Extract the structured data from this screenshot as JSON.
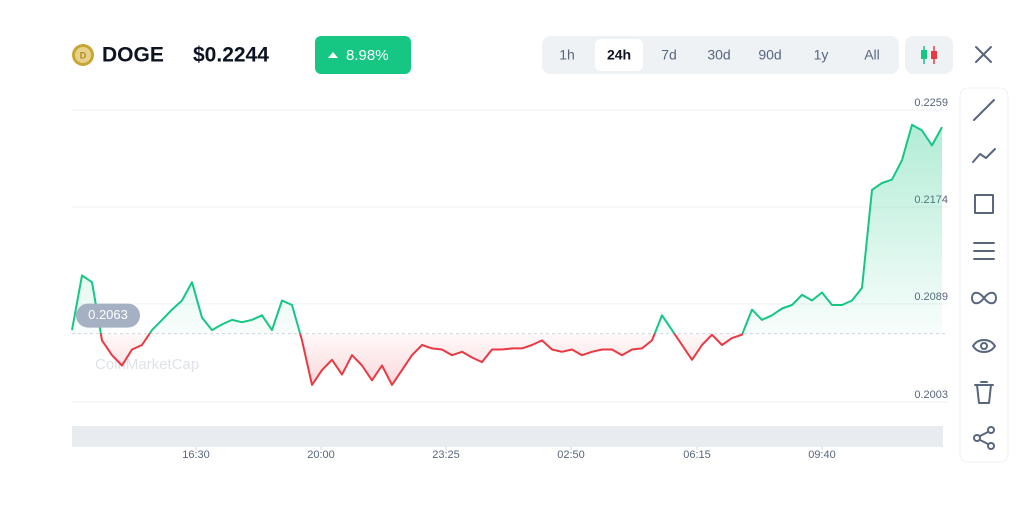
{
  "header": {
    "symbol": "DOGE",
    "price": "$0.2244",
    "change": "8.98%"
  },
  "ranges": [
    "1h",
    "24h",
    "7d",
    "30d",
    "90d",
    "1y",
    "All"
  ],
  "active_range": "24h",
  "watermark": "CoinMarketCap",
  "chart_data": {
    "type": "line",
    "values": [
      0.2066,
      0.2114,
      0.2108,
      0.2057,
      0.2044,
      0.2035,
      0.2049,
      0.2053,
      0.2066,
      0.2075,
      0.2084,
      0.2092,
      0.2108,
      0.2077,
      0.2066,
      0.2071,
      0.2075,
      0.2073,
      0.2075,
      0.2079,
      0.2066,
      0.2092,
      0.2088,
      0.2057,
      0.2018,
      0.2031,
      0.204,
      0.2027,
      0.2044,
      0.2035,
      0.2022,
      0.2035,
      0.2018,
      0.2031,
      0.2044,
      0.2053,
      0.205,
      0.2049,
      0.2044,
      0.2047,
      0.2042,
      0.2038,
      0.2049,
      0.2049,
      0.205,
      0.205,
      0.2053,
      0.2057,
      0.2049,
      0.2047,
      0.2049,
      0.2044,
      0.2047,
      0.2049,
      0.2049,
      0.2044,
      0.2049,
      0.205,
      0.2057,
      0.2079,
      0.2066,
      0.2053,
      0.204,
      0.2053,
      0.2062,
      0.2053,
      0.2059,
      0.2062,
      0.2084,
      0.2075,
      0.2079,
      0.2085,
      0.2088,
      0.2097,
      0.2092,
      0.2099,
      0.2088,
      0.2088,
      0.2092,
      0.2103,
      0.2189,
      0.2195,
      0.2198,
      0.2215,
      0.2246,
      0.2241,
      0.2228,
      0.2244
    ],
    "baseline": 0.2063,
    "up_color": "#16c784",
    "down_color": "#ea3943",
    "xlim": [
      0,
      87
    ],
    "xticks": [
      {
        "value": 12.4,
        "label": "16:30"
      },
      {
        "value": 24.9,
        "label": "20:00"
      },
      {
        "value": 37.4,
        "label": "23:25"
      },
      {
        "value": 49.9,
        "label": "02:50"
      },
      {
        "value": 62.5,
        "label": "06:15"
      },
      {
        "value": 75.0,
        "label": "09:40"
      }
    ],
    "ylim": [
      0.2003,
      0.2259
    ],
    "yticks": [
      0.2259,
      0.2174,
      0.2089,
      0.2003
    ],
    "grid": true
  }
}
